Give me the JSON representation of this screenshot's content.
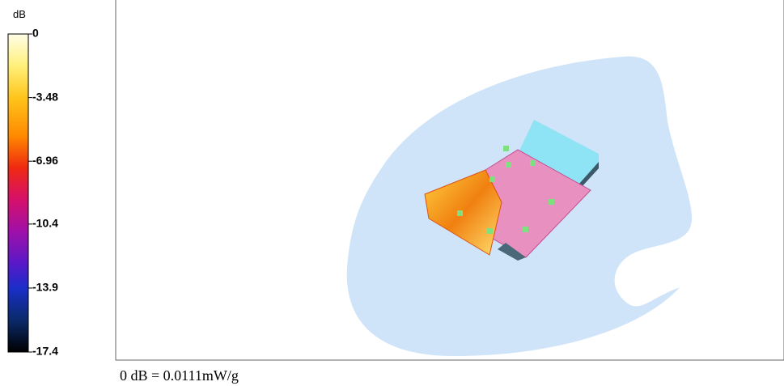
{
  "colorbar": {
    "unit": "dB",
    "ticks": [
      0,
      -3.48,
      -6.96,
      -10.4,
      -13.9,
      -17.4
    ]
  },
  "footer": "0 dB = 0.0111mW/g"
}
